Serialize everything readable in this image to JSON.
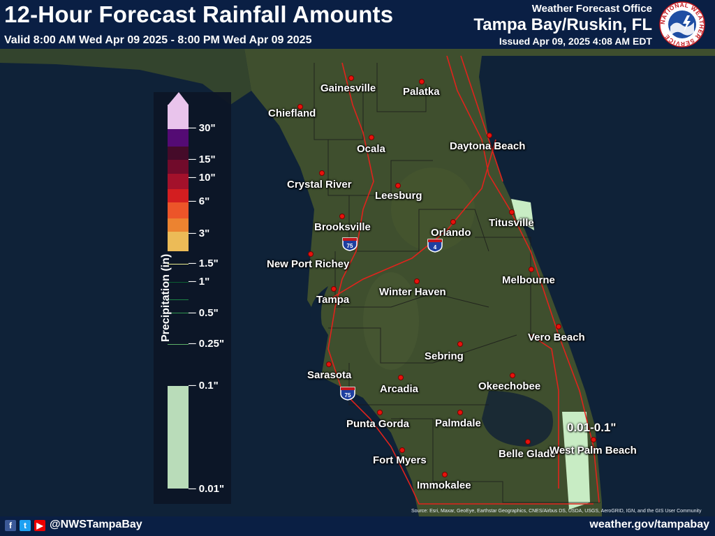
{
  "header": {
    "title": "12-Hour Forecast Rainfall Amounts",
    "valid": "Valid 8:00 AM Wed Apr 09 2025 - 8:00 PM Wed Apr 09 2025",
    "office": "Weather Forecast Office",
    "office_name": "Tampa Bay/Ruskin, FL",
    "issued": "Issued Apr 09, 2025 4:08 AM EDT"
  },
  "logo": {
    "text": "NATIONAL WEATHER SERVICE",
    "colors": {
      "ring": "#ffffff",
      "sky": "#1f4ea3",
      "text": "#c4161c"
    }
  },
  "legend": {
    "title": "Precipitation (in)",
    "ticks": [
      "30\"",
      "15\"",
      "10\"",
      "6\"",
      "3\"",
      "1.5\"",
      "1\"",
      "0.5\"",
      "0.25\"",
      "0.1\"",
      "0.01\""
    ],
    "colors": [
      "#fcd2fc",
      "#5a0a7a",
      "#4a0a28",
      "#7a0a2a",
      "#b0102a",
      "#e41e1e",
      "#ff5a28",
      "#ff8c30",
      "#ffc85a",
      "#ffff96",
      "#0a6432",
      "#1e8c46",
      "#32a050",
      "#64be6e",
      "#96d48c",
      "#c8ecc4"
    ]
  },
  "cities": [
    {
      "name": "Gainesville"
    },
    {
      "name": "Palatka"
    },
    {
      "name": "Chiefland"
    },
    {
      "name": "Ocala"
    },
    {
      "name": "Daytona Beach"
    },
    {
      "name": "Crystal River"
    },
    {
      "name": "Leesburg"
    },
    {
      "name": "Titusville"
    },
    {
      "name": "Brooksville"
    },
    {
      "name": "Orlando"
    },
    {
      "name": "New Port Richey"
    },
    {
      "name": "Melbourne"
    },
    {
      "name": "Winter Haven"
    },
    {
      "name": "Tampa"
    },
    {
      "name": "Vero Beach"
    },
    {
      "name": "Sebring"
    },
    {
      "name": "Sarasota"
    },
    {
      "name": "Arcadia"
    },
    {
      "name": "Okeechobee"
    },
    {
      "name": "Punta Gorda"
    },
    {
      "name": "Palmdale"
    },
    {
      "name": "Belle Glade"
    },
    {
      "name": "West Palm Beach"
    },
    {
      "name": "Fort Myers"
    },
    {
      "name": "Immokalee"
    }
  ],
  "shields": [
    {
      "label": "75"
    },
    {
      "label": "4"
    },
    {
      "label": "75"
    }
  ],
  "annotation": "0.01-0.1\"",
  "attribution": "Source: Esri, Maxar, GeoEye, Earthstar Geographics, CNES/Airbus DS, USDA, USGS, AeroGRID, IGN, and the GIS User Community",
  "footer": {
    "handle": "@NWSTampaBay",
    "website": "weather.gov/tampabay"
  }
}
